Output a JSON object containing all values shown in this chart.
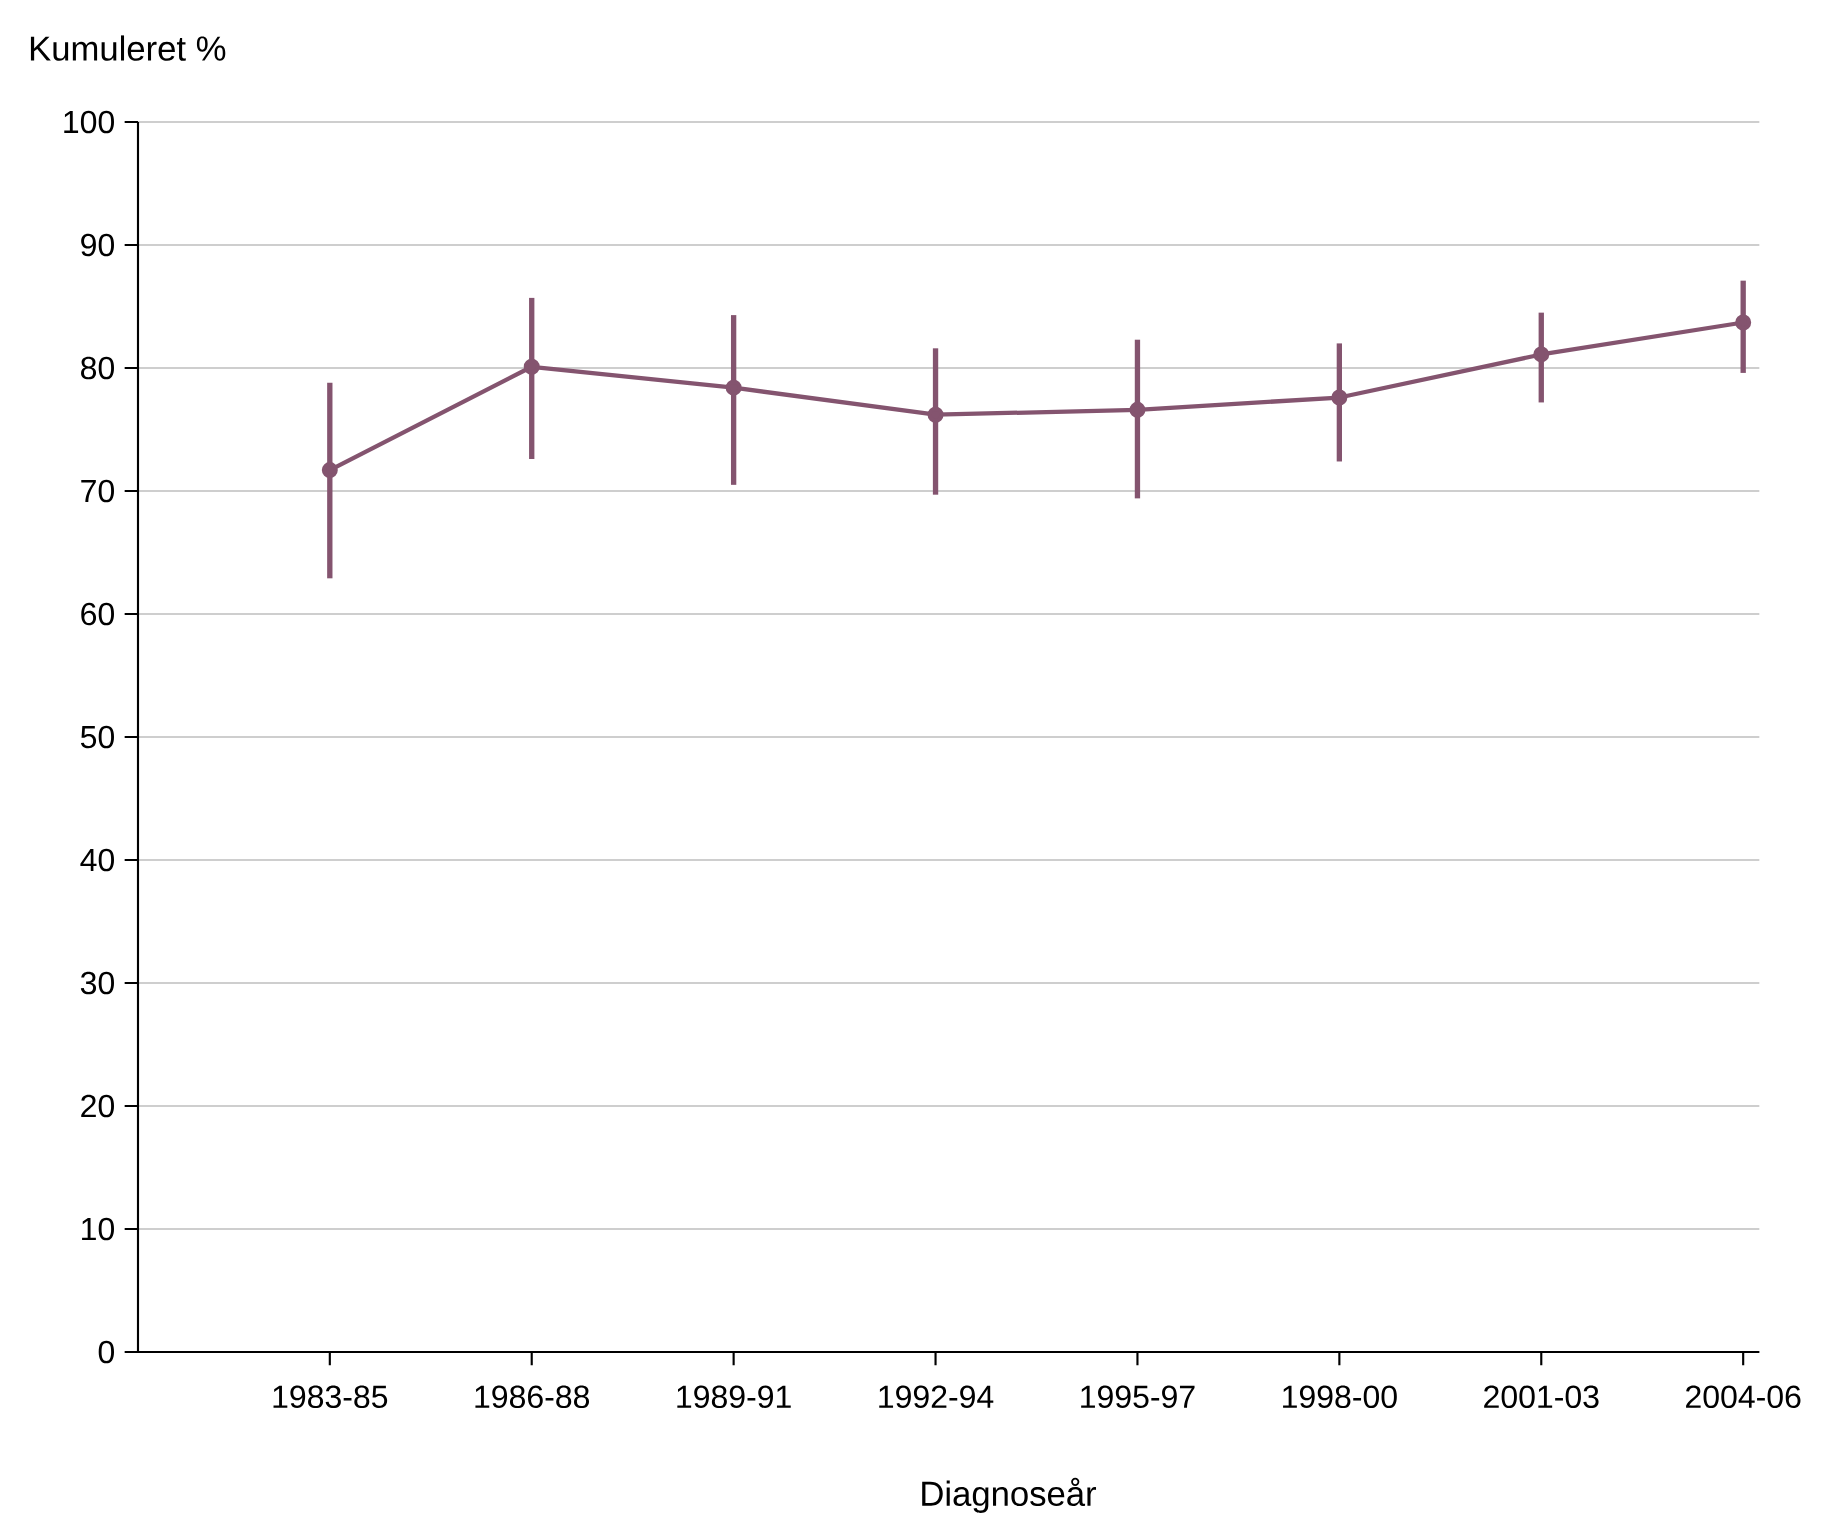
{
  "chart_data": {
    "type": "line",
    "xlabel": "Diagnoseår",
    "ylabel": "Kumuleret %",
    "categories": [
      "1983-85",
      "1986-88",
      "1989-91",
      "1992-94",
      "1995-97",
      "1998-00",
      "2001-03",
      "2004-06"
    ],
    "series": [
      {
        "color": "#84546f",
        "values": [
          71.7,
          80.1,
          78.4,
          76.2,
          76.6,
          77.6,
          81.1,
          83.7
        ],
        "errors": [
          [
            62.9,
            78.8
          ],
          [
            72.6,
            85.7
          ],
          [
            70.5,
            84.3
          ],
          [
            69.7,
            81.6
          ],
          [
            69.4,
            82.3
          ],
          [
            72.4,
            82.0
          ],
          [
            77.2,
            84.5
          ],
          [
            79.6,
            87.1
          ]
        ]
      }
    ],
    "ylim": [
      0,
      100
    ],
    "yticks": [
      0,
      10,
      20,
      30,
      40,
      50,
      60,
      70,
      80,
      90,
      100
    ],
    "grid": "y",
    "marker": "circle",
    "line_style": "solid"
  }
}
